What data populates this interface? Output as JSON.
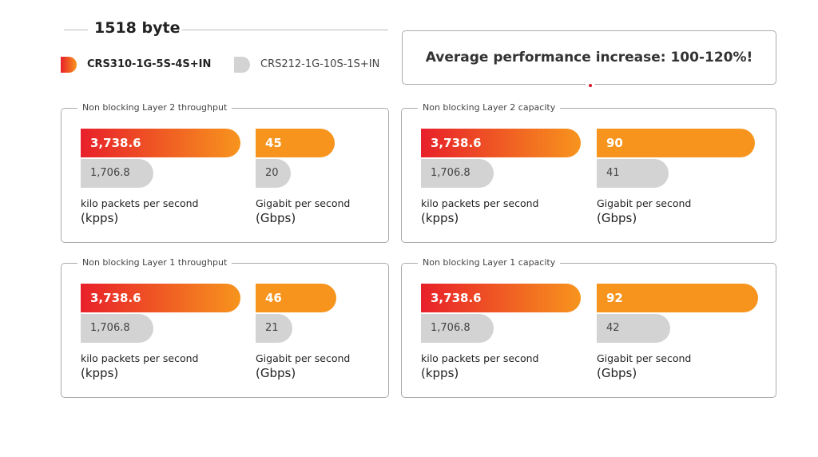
{
  "title": "1518 byte",
  "legend": [
    {
      "label": "CRS310-1G-5S-4S+IN",
      "color": "#f05a24"
    },
    {
      "label": "CRS212-1G-10S-1S+IN",
      "color": "#d3d3d3"
    }
  ],
  "callout": "Average performance increase: 100-120%!",
  "colors": {
    "gradient_start": "#e8202a",
    "gradient_end": "#f7941d",
    "gbps_bar": "#f7941d",
    "old_bar": "#d3d3d3"
  },
  "chart_data": {
    "type": "bar",
    "orientation": "horizontal",
    "series_names": [
      "CRS310-1G-5S-4S+IN",
      "CRS212-1G-10S-1S+IN"
    ],
    "panels": [
      {
        "title": "Non blocking Layer 2 throughput",
        "kpps": {
          "values": [
            3738.6,
            1706.8
          ],
          "labels": [
            "3,738.6",
            "1,706.8"
          ],
          "unit_line1": "kilo packets per second",
          "unit_line2": "(kpps)"
        },
        "gbps": {
          "values": [
            45,
            20
          ],
          "labels": [
            "45",
            "20"
          ],
          "unit_line1": "Gigabit per second",
          "unit_line2": "(Gbps)"
        }
      },
      {
        "title": "Non blocking Layer 2 capacity",
        "kpps": {
          "values": [
            3738.6,
            1706.8
          ],
          "labels": [
            "3,738.6",
            "1,706.8"
          ],
          "unit_line1": "kilo packets per second",
          "unit_line2": "(kpps)"
        },
        "gbps": {
          "values": [
            90,
            41
          ],
          "labels": [
            "90",
            "41"
          ],
          "unit_line1": "Gigabit per second",
          "unit_line2": "(Gbps)"
        }
      },
      {
        "title": "Non blocking Layer 1 throughput",
        "kpps": {
          "values": [
            3738.6,
            1706.8
          ],
          "labels": [
            "3,738.6",
            "1,706.8"
          ],
          "unit_line1": "kilo packets per second",
          "unit_line2": "(kpps)"
        },
        "gbps": {
          "values": [
            46,
            21
          ],
          "labels": [
            "46",
            "21"
          ],
          "unit_line1": "Gigabit per second",
          "unit_line2": "(Gbps)"
        }
      },
      {
        "title": "Non blocking Layer 1 capacity",
        "kpps": {
          "values": [
            3738.6,
            1706.8
          ],
          "labels": [
            "3,738.6",
            "1,706.8"
          ],
          "unit_line1": "kilo packets per second",
          "unit_line2": "(kpps)"
        },
        "gbps": {
          "values": [
            92,
            42
          ],
          "labels": [
            "92",
            "42"
          ],
          "unit_line1": "Gigabit per second",
          "unit_line2": "(Gbps)"
        }
      }
    ]
  }
}
